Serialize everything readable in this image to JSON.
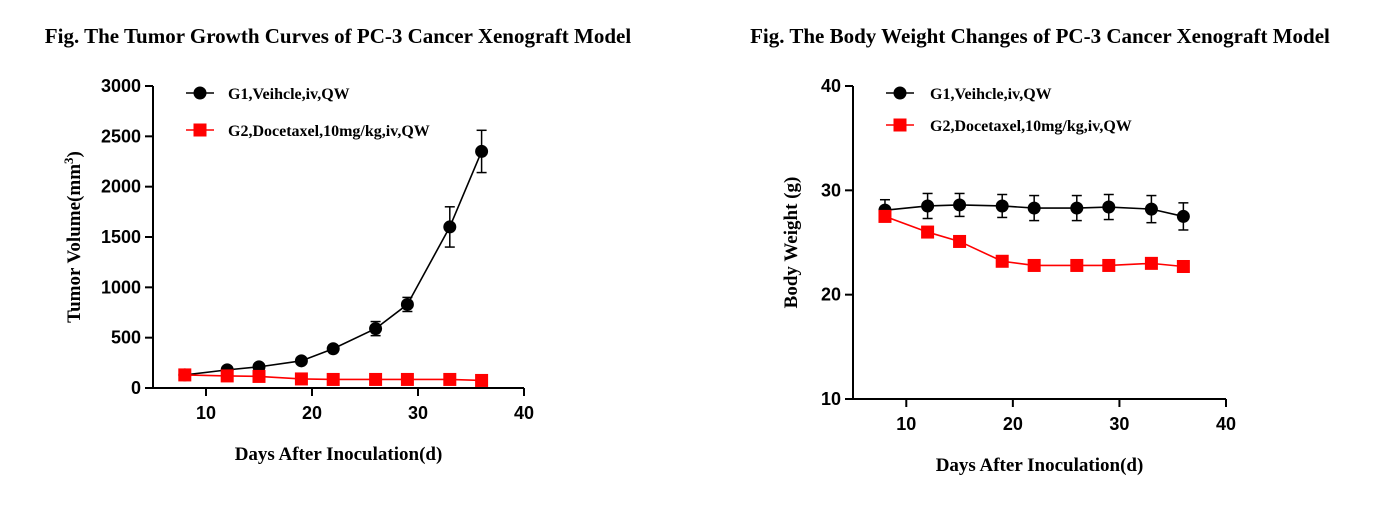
{
  "chart_data": [
    {
      "type": "line",
      "title": "Fig. The Tumor Growth Curves of PC-3 Cancer Xenograft Model",
      "xlabel": "Days After Inoculation(d)",
      "ylabel": "Tumor Volume(mm",
      "ylabel_sup": "3",
      "ylabel_close": ")",
      "xlim": [
        5,
        40
      ],
      "ylim": [
        0,
        3000
      ],
      "xticks": [
        10,
        20,
        30,
        40
      ],
      "yticks": [
        0,
        500,
        1000,
        1500,
        2000,
        2500,
        3000
      ],
      "legend_position": "top-left",
      "series": [
        {
          "name": "G1,Veihcle,iv,QW",
          "color": "#000000",
          "marker": "circle",
          "x": [
            8,
            12,
            15,
            19,
            22,
            26,
            29,
            33,
            36
          ],
          "y": [
            130,
            180,
            210,
            270,
            390,
            590,
            830,
            1600,
            2350
          ],
          "err": [
            20,
            20,
            20,
            20,
            30,
            70,
            70,
            200,
            210
          ]
        },
        {
          "name": "G2,Docetaxel,10mg/kg,iv,QW",
          "color": "#ff0000",
          "marker": "square",
          "x": [
            8,
            12,
            15,
            19,
            22,
            26,
            29,
            33,
            36
          ],
          "y": [
            130,
            120,
            115,
            90,
            85,
            85,
            85,
            85,
            75
          ],
          "err": [
            10,
            10,
            10,
            8,
            8,
            8,
            8,
            8,
            8
          ]
        }
      ]
    },
    {
      "type": "line",
      "title": "Fig. The Body Weight Changes of PC-3 Cancer Xenograft Model",
      "xlabel": "Days After Inoculation(d)",
      "ylabel": "Body Weight (g)",
      "ylabel_sup": "",
      "ylabel_close": "",
      "xlim": [
        5,
        40
      ],
      "ylim": [
        10,
        40
      ],
      "xticks": [
        10,
        20,
        30,
        40
      ],
      "yticks": [
        10,
        20,
        30,
        40
      ],
      "legend_position": "top-left",
      "series": [
        {
          "name": "G1,Veihcle,iv,QW",
          "color": "#000000",
          "marker": "circle",
          "x": [
            8,
            12,
            15,
            19,
            22,
            26,
            29,
            33,
            36
          ],
          "y": [
            28.1,
            28.5,
            28.6,
            28.5,
            28.3,
            28.3,
            28.4,
            28.2,
            27.5
          ],
          "err": [
            1.0,
            1.2,
            1.1,
            1.1,
            1.2,
            1.2,
            1.2,
            1.3,
            1.3
          ]
        },
        {
          "name": "G2,Docetaxel,10mg/kg,iv,QW",
          "color": "#ff0000",
          "marker": "square",
          "x": [
            8,
            12,
            15,
            19,
            22,
            26,
            29,
            33,
            36
          ],
          "y": [
            27.5,
            26.0,
            25.1,
            23.2,
            22.8,
            22.8,
            22.8,
            23.0,
            22.7
          ],
          "err": [
            0.3,
            0.3,
            0.3,
            0.3,
            0.3,
            0.3,
            0.3,
            0.3,
            0.3
          ]
        }
      ]
    }
  ]
}
